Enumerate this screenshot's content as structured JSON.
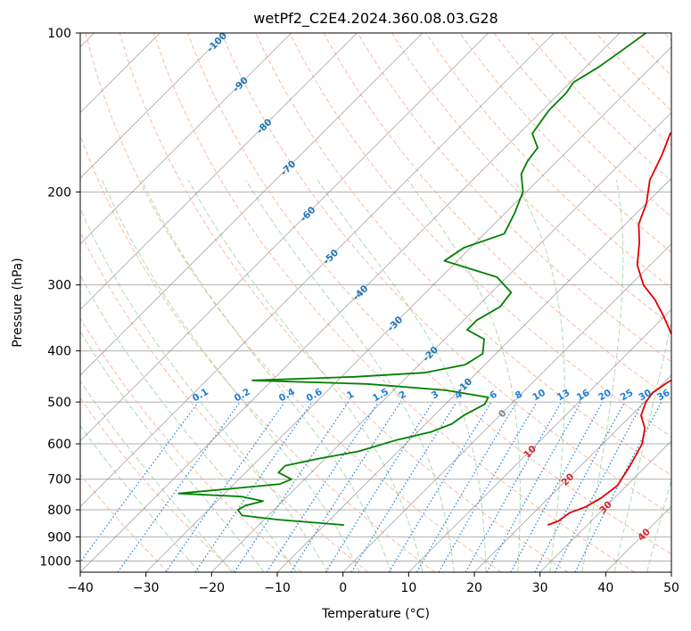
{
  "chart_data": {
    "type": "line",
    "title": "wetPf2_C2E4.2024.360.08.03.G28",
    "xlabel": "Temperature (°C)",
    "ylabel": "Pressure (hPa)",
    "xlim": [
      -40,
      50
    ],
    "ylim": [
      1050,
      100
    ],
    "y_scale": "log",
    "x_ticks": [
      "−40",
      "−30",
      "−20",
      "−10",
      "0",
      "10",
      "20",
      "30",
      "40",
      "50"
    ],
    "y_ticks": [
      "100",
      "200",
      "300",
      "400",
      "500",
      "600",
      "700",
      "800",
      "900",
      "1000"
    ],
    "grid": true,
    "colors": {
      "temperature": "#e00000",
      "dewpoint": "#008000",
      "dry_adiabats": "#f5a07a",
      "moist_adiabats": "#6cbf6c",
      "mixing_ratio": "#1e7fd8",
      "isotherms": "#808080",
      "isotherm_label_cold": "#1f77b4",
      "isotherm_label_warm": "#d62728"
    },
    "isotherm_labels": [
      "-100",
      "-90",
      "-80",
      "-70",
      "-60",
      "-50",
      "-40",
      "-30",
      "-20",
      "-10",
      "0",
      "10",
      "20",
      "30",
      "40"
    ],
    "mixing_ratio_labels": [
      "0.1",
      "0.2",
      "0.4",
      "0.6",
      "1",
      "1.5",
      "2",
      "3",
      "4",
      "6",
      "8",
      "10",
      "13",
      "16",
      "20",
      "25",
      "30",
      "36"
    ],
    "series": [
      {
        "key": "temperature",
        "points": [
          [
            24,
            855
          ],
          [
            25,
            840
          ],
          [
            25.5,
            810
          ],
          [
            27,
            790
          ],
          [
            28,
            760
          ],
          [
            28.6,
            720
          ],
          [
            27.5,
            660
          ],
          [
            26,
            600
          ],
          [
            24,
            560
          ],
          [
            21.5,
            530
          ],
          [
            20.2,
            500
          ],
          [
            19.8,
            480
          ],
          [
            20.5,
            460
          ],
          [
            21.5,
            440
          ],
          [
            21,
            425
          ],
          [
            18,
            400
          ],
          [
            13.5,
            370
          ],
          [
            10,
            345
          ],
          [
            6,
            320
          ],
          [
            2,
            300
          ],
          [
            -2,
            275
          ],
          [
            -5,
            250
          ],
          [
            -8,
            230
          ],
          [
            -10,
            210
          ],
          [
            -13,
            190
          ],
          [
            -15,
            170
          ],
          [
            -17,
            155
          ],
          [
            -16,
            145
          ],
          [
            -13,
            130
          ],
          [
            -11,
            122
          ],
          [
            -11.5,
            115
          ],
          [
            -13.5,
            108
          ],
          [
            -16,
            100
          ]
        ]
      },
      {
        "key": "dewpoint",
        "points": [
          [
            -7,
            855
          ],
          [
            -18,
            835
          ],
          [
            -24,
            820
          ],
          [
            -25.5,
            800
          ],
          [
            -25,
            785
          ],
          [
            -23,
            770
          ],
          [
            -27,
            755
          ],
          [
            -37,
            745
          ],
          [
            -30,
            730
          ],
          [
            -23,
            715
          ],
          [
            -22,
            700
          ],
          [
            -25,
            680
          ],
          [
            -25,
            660
          ],
          [
            -21,
            640
          ],
          [
            -16,
            620
          ],
          [
            -12,
            590
          ],
          [
            -8,
            570
          ],
          [
            -6,
            550
          ],
          [
            -5.5,
            530
          ],
          [
            -4,
            505
          ],
          [
            -4.5,
            490
          ],
          [
            -12,
            475
          ],
          [
            -25,
            462
          ],
          [
            -43,
            455
          ],
          [
            -28,
            448
          ],
          [
            -18,
            440
          ],
          [
            -13,
            425
          ],
          [
            -12,
            405
          ],
          [
            -14,
            380
          ],
          [
            -18,
            365
          ],
          [
            -18,
            350
          ],
          [
            -16.5,
            330
          ],
          [
            -17,
            310
          ],
          [
            -21.5,
            290
          ],
          [
            -32,
            270
          ],
          [
            -31,
            255
          ],
          [
            -27,
            240
          ],
          [
            -28.5,
            220
          ],
          [
            -30.5,
            200
          ],
          [
            -33.5,
            185
          ],
          [
            -34.5,
            175
          ],
          [
            -35,
            165
          ],
          [
            -38,
            155
          ],
          [
            -39,
            140
          ],
          [
            -39,
            130
          ],
          [
            -39.5,
            124
          ],
          [
            -38,
            116
          ],
          [
            -37,
            108
          ],
          [
            -36,
            100
          ]
        ]
      }
    ]
  }
}
